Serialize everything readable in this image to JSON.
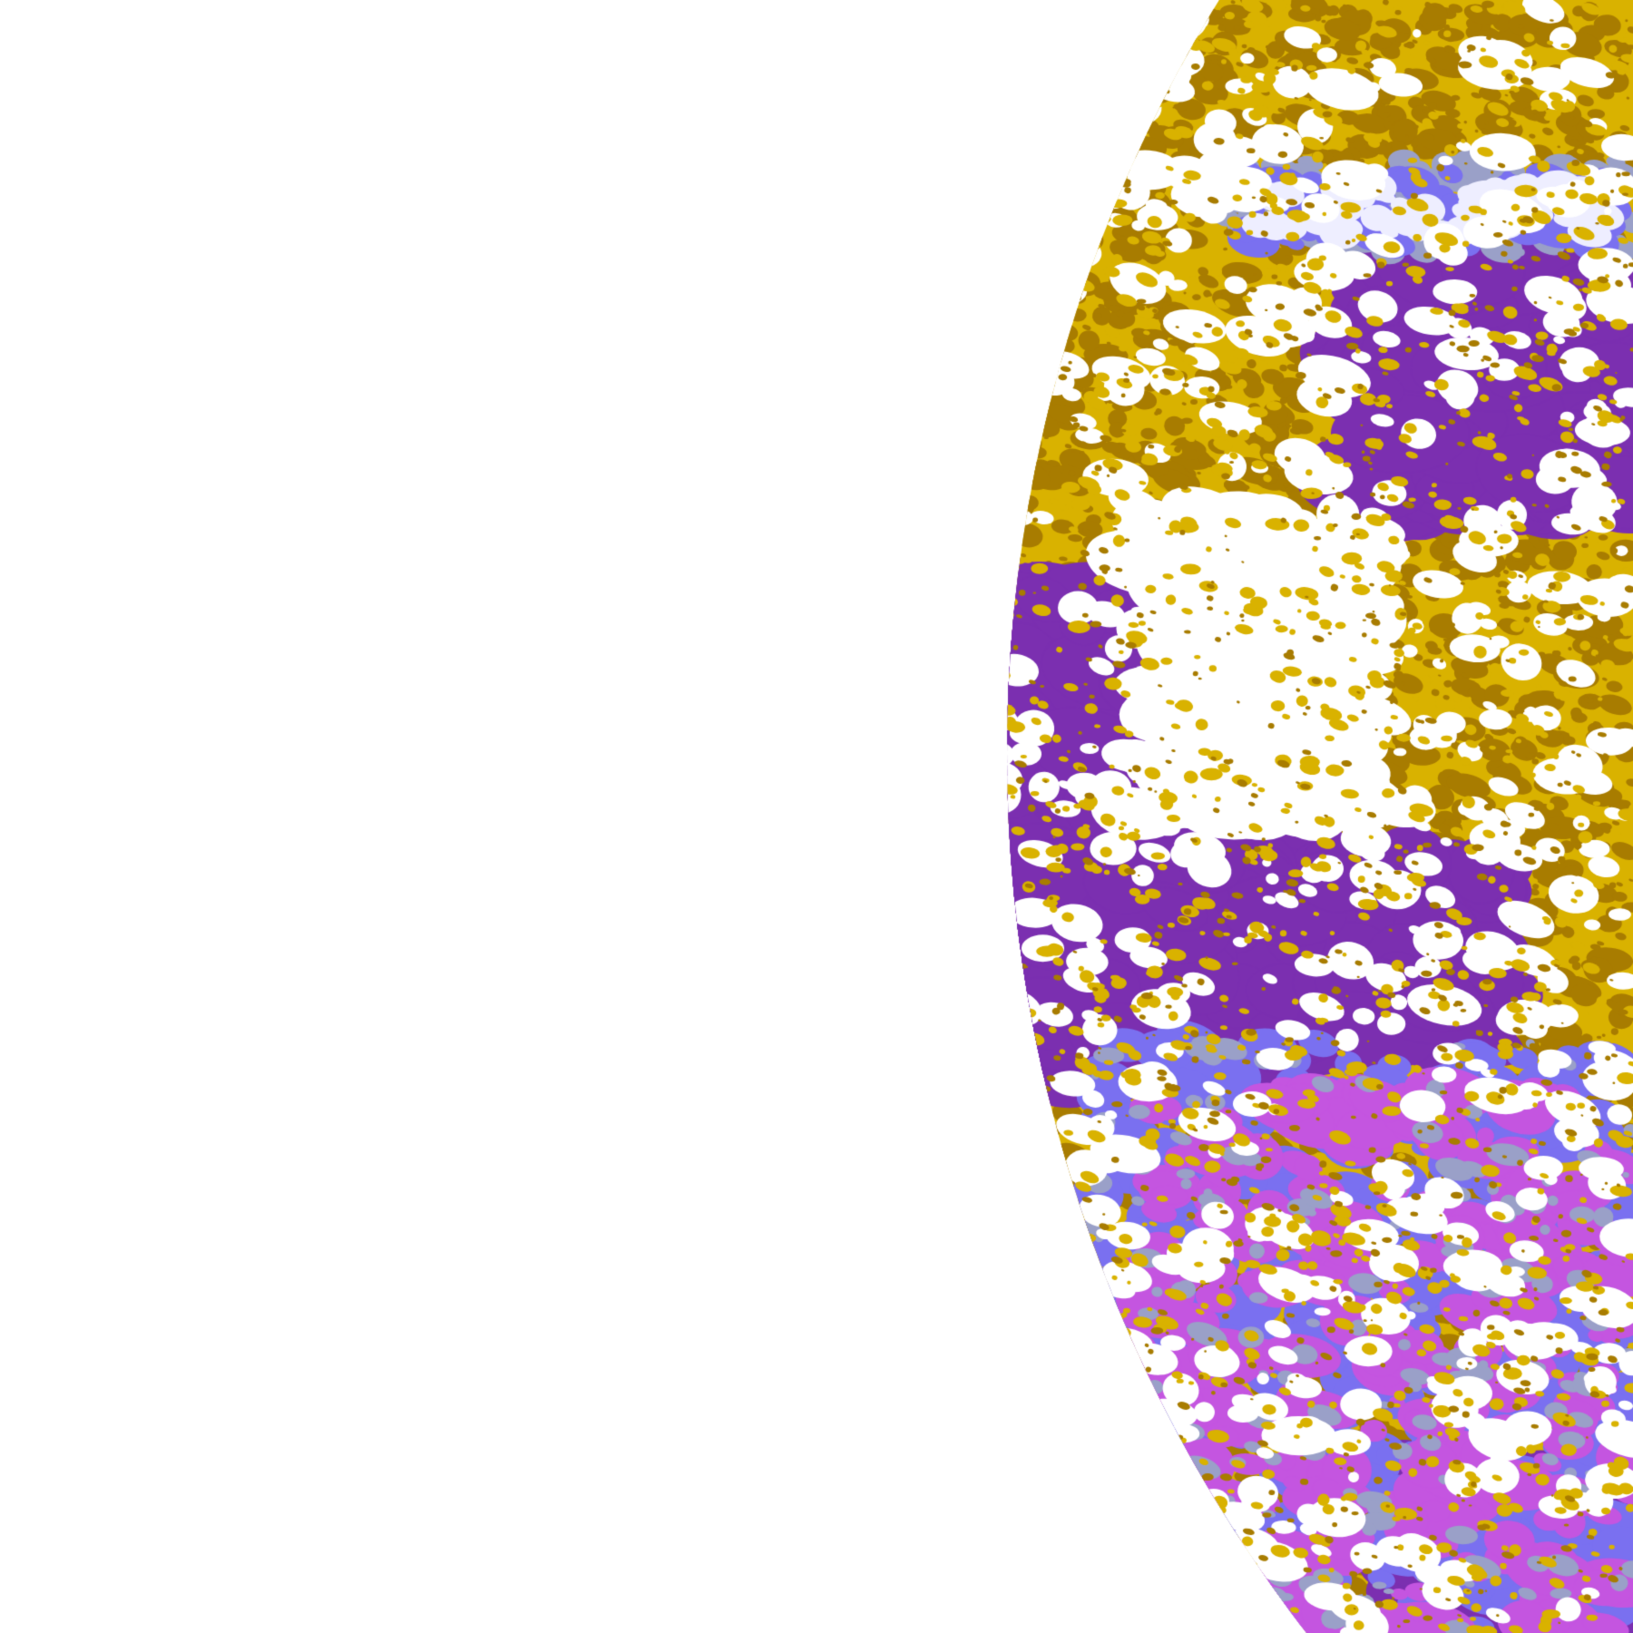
{
  "image": {
    "kind": "classified satellite earth-disk imagery",
    "palette": {
      "space_background": "#ffffff",
      "class_gold": "#d9b200",
      "class_dark_gold": "#a87c00",
      "class_purple": "#7b2fb0",
      "class_magenta": "#c455e0",
      "class_periwinkle": "#7a70f0",
      "class_light_lavender": "#eeeeff",
      "class_grey_blue": "#9aa0c8",
      "clear_white": "#ffffff"
    }
  }
}
